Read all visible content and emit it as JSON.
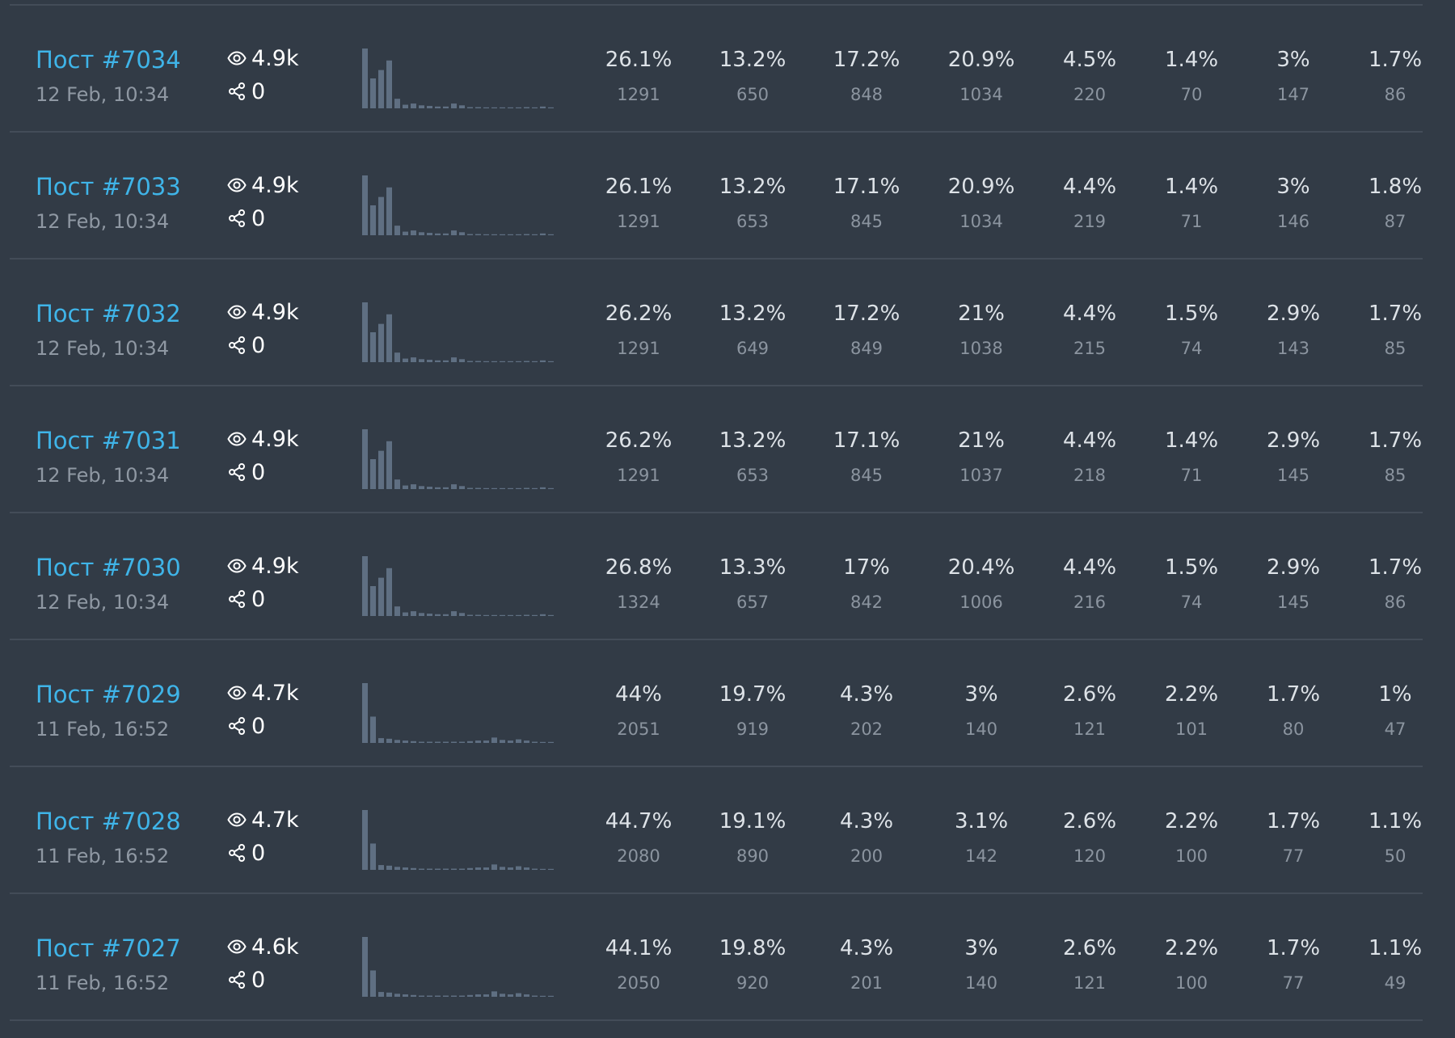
{
  "icons": {
    "views": "eye-icon",
    "shares": "share-icon"
  },
  "colors": {
    "background": "#323b46",
    "link": "#3fb4e8",
    "spark_bar": "#5f6f82",
    "divider": "#434c58"
  },
  "rows": [
    {
      "title": "Пост #7034",
      "date": "12 Feb, 10:34",
      "views": "4.9k",
      "shares": "0",
      "pct": [
        "26.1%",
        "13.2%",
        "17.2%",
        "20.9%",
        "4.5%",
        "1.4%",
        "3%",
        "1.7%"
      ],
      "counts": [
        "1291",
        "650",
        "848",
        "1034",
        "220",
        "70",
        "147",
        "86"
      ],
      "sparkline": [
        100,
        50,
        64,
        80,
        16,
        6,
        8,
        5,
        4,
        3,
        3,
        8,
        5,
        2,
        2,
        1,
        1,
        1,
        1,
        1,
        2,
        1,
        3,
        1
      ]
    },
    {
      "title": "Пост #7033",
      "date": "12 Feb, 10:34",
      "views": "4.9k",
      "shares": "0",
      "pct": [
        "26.1%",
        "13.2%",
        "17.1%",
        "20.9%",
        "4.4%",
        "1.4%",
        "3%",
        "1.8%"
      ],
      "counts": [
        "1291",
        "653",
        "845",
        "1034",
        "219",
        "71",
        "146",
        "87"
      ],
      "sparkline": [
        100,
        50,
        64,
        80,
        16,
        6,
        8,
        5,
        4,
        3,
        3,
        8,
        5,
        2,
        2,
        1,
        1,
        1,
        1,
        1,
        2,
        1,
        3,
        1
      ]
    },
    {
      "title": "Пост #7032",
      "date": "12 Feb, 10:34",
      "views": "4.9k",
      "shares": "0",
      "pct": [
        "26.2%",
        "13.2%",
        "17.2%",
        "21%",
        "4.4%",
        "1.5%",
        "2.9%",
        "1.7%"
      ],
      "counts": [
        "1291",
        "649",
        "849",
        "1038",
        "215",
        "74",
        "143",
        "85"
      ],
      "sparkline": [
        100,
        50,
        64,
        80,
        16,
        6,
        8,
        5,
        4,
        3,
        3,
        8,
        5,
        2,
        2,
        1,
        1,
        1,
        1,
        1,
        2,
        1,
        3,
        1
      ]
    },
    {
      "title": "Пост #7031",
      "date": "12 Feb, 10:34",
      "views": "4.9k",
      "shares": "0",
      "pct": [
        "26.2%",
        "13.2%",
        "17.1%",
        "21%",
        "4.4%",
        "1.4%",
        "2.9%",
        "1.7%"
      ],
      "counts": [
        "1291",
        "653",
        "845",
        "1037",
        "218",
        "71",
        "145",
        "85"
      ],
      "sparkline": [
        100,
        50,
        64,
        80,
        16,
        6,
        8,
        5,
        4,
        3,
        3,
        8,
        5,
        2,
        2,
        1,
        1,
        1,
        1,
        1,
        2,
        1,
        3,
        1
      ]
    },
    {
      "title": "Пост #7030",
      "date": "12 Feb, 10:34",
      "views": "4.9k",
      "shares": "0",
      "pct": [
        "26.8%",
        "13.3%",
        "17%",
        "20.4%",
        "4.4%",
        "1.5%",
        "2.9%",
        "1.7%"
      ],
      "counts": [
        "1324",
        "657",
        "842",
        "1006",
        "216",
        "74",
        "145",
        "86"
      ],
      "sparkline": [
        100,
        50,
        64,
        80,
        16,
        6,
        8,
        5,
        4,
        3,
        3,
        8,
        5,
        2,
        2,
        1,
        1,
        1,
        1,
        1,
        2,
        1,
        3,
        1
      ]
    },
    {
      "title": "Пост #7029",
      "date": "11 Feb, 16:52",
      "views": "4.7k",
      "shares": "0",
      "pct": [
        "44%",
        "19.7%",
        "4.3%",
        "3%",
        "2.6%",
        "2.2%",
        "1.7%",
        "1%"
      ],
      "counts": [
        "2051",
        "919",
        "202",
        "140",
        "121",
        "101",
        "80",
        "47"
      ],
      "sparkline": [
        100,
        44,
        8,
        7,
        5,
        4,
        3,
        2,
        2,
        2,
        2,
        2,
        2,
        3,
        4,
        4,
        9,
        5,
        4,
        6,
        4,
        2,
        1,
        1
      ]
    },
    {
      "title": "Пост #7028",
      "date": "11 Feb, 16:52",
      "views": "4.7k",
      "shares": "0",
      "pct": [
        "44.7%",
        "19.1%",
        "4.3%",
        "3.1%",
        "2.6%",
        "2.2%",
        "1.7%",
        "1.1%"
      ],
      "counts": [
        "2080",
        "890",
        "200",
        "142",
        "120",
        "100",
        "77",
        "50"
      ],
      "sparkline": [
        100,
        44,
        8,
        7,
        5,
        4,
        3,
        2,
        2,
        2,
        2,
        2,
        2,
        3,
        4,
        4,
        9,
        5,
        4,
        6,
        4,
        2,
        1,
        1
      ]
    },
    {
      "title": "Пост #7027",
      "date": "11 Feb, 16:52",
      "views": "4.6k",
      "shares": "0",
      "pct": [
        "44.1%",
        "19.8%",
        "4.3%",
        "3%",
        "2.6%",
        "2.2%",
        "1.7%",
        "1.1%"
      ],
      "counts": [
        "2050",
        "920",
        "201",
        "140",
        "121",
        "100",
        "77",
        "49"
      ],
      "sparkline": [
        100,
        44,
        8,
        7,
        5,
        4,
        3,
        2,
        2,
        2,
        2,
        2,
        2,
        3,
        4,
        4,
        9,
        5,
        4,
        6,
        4,
        2,
        1,
        1
      ]
    }
  ]
}
